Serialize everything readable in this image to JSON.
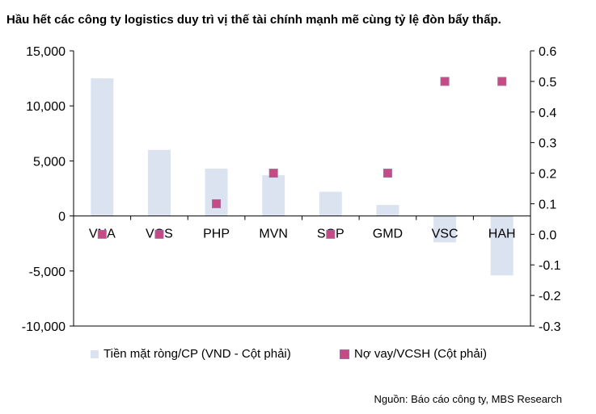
{
  "title": "Hầu hết các công ty logistics duy trì vị thế tài chính mạnh mẽ cùng tỷ lệ đòn bẩy thấp.",
  "source": "Nguồn: Báo cáo công ty, MBS Research",
  "colors": {
    "bar": "#dbe3f1",
    "marker": "#c84a84",
    "marker_border": "#9a6fa0",
    "axis": "#000000"
  },
  "chart_data": {
    "type": "bar",
    "categories": [
      "VNA",
      "VOS",
      "PHP",
      "MVN",
      "SGP",
      "GMD",
      "VSC",
      "HAH"
    ],
    "series": [
      {
        "name": "Tiền mặt ròng/CP (VND - Cột phải)",
        "type": "bar",
        "axis": "left",
        "values": [
          12500,
          6000,
          4300,
          3700,
          2200,
          1000,
          -2400,
          -5400
        ]
      },
      {
        "name": "Nợ vay/VCSH (Cột phải)",
        "type": "scatter",
        "axis": "right",
        "values": [
          0.0,
          0.0,
          0.1,
          0.2,
          0.0,
          0.2,
          0.5,
          0.5
        ]
      }
    ],
    "y_left": {
      "ylim": [
        -10000,
        15000
      ],
      "ticks": [
        -10000,
        -5000,
        0,
        5000,
        10000,
        15000
      ],
      "tick_labels": [
        "-10,000",
        "-5,000",
        "0",
        "5,000",
        "10,000",
        "15,000"
      ]
    },
    "y_right": {
      "ylim": [
        -0.3,
        0.6
      ],
      "ticks": [
        -0.3,
        -0.2,
        -0.1,
        0.0,
        0.1,
        0.2,
        0.3,
        0.4,
        0.5,
        0.6
      ],
      "tick_labels": [
        "-0.3",
        "-0.2",
        "-0.1",
        "0.0",
        "0.1",
        "0.2",
        "0.3",
        "0.4",
        "0.5",
        "0.6"
      ]
    },
    "grid": false,
    "legend": "bottom"
  }
}
